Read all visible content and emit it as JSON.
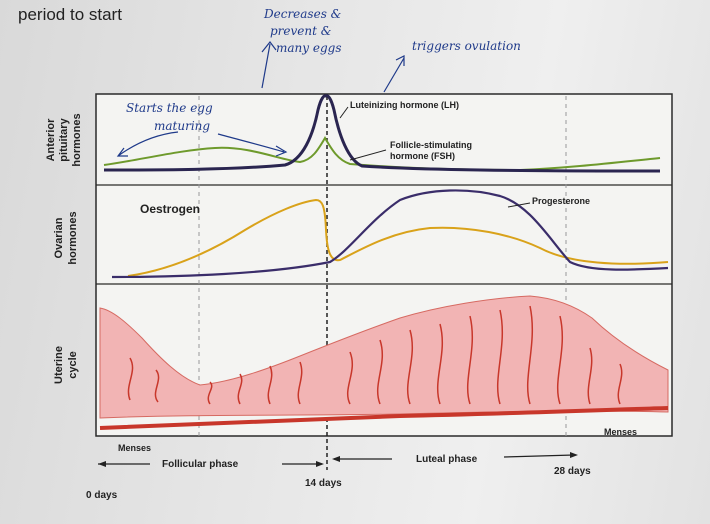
{
  "header": {
    "text": "period to start"
  },
  "panels": {
    "pituitary": [
      "Anterior",
      "pituitary",
      "hormones"
    ],
    "ovarian": [
      "Ovarian",
      "hormones"
    ],
    "uterine": [
      "Uterine",
      "cycle"
    ]
  },
  "hormones": {
    "lh": "Luteinizing hormone (LH)",
    "fsh_line1": "Follicle-stimulating",
    "fsh_line2": "hormone (FSH)",
    "oestrogen": "Oestrogen",
    "progesterone": "Progesterone"
  },
  "phases": {
    "menses_left": "Menses",
    "menses_right": "Menses",
    "follicular": "Follicular phase",
    "luteal": "Luteal phase"
  },
  "days": {
    "start": "0 days",
    "ovulation": "14 days",
    "end": "28 days"
  },
  "annotations": {
    "decreases_line1": "Decreases &",
    "decreases_line2": "prevent &",
    "decreases_line3": "many eggs",
    "ovulation": "triggers ovulation",
    "egg_line1": "Starts the egg",
    "egg_line2": "maturing"
  },
  "colors": {
    "lh": "#2a2550",
    "fsh": "#6e9a2c",
    "oestrogen": "#d9a21a",
    "progesterone": "#3a2d6a",
    "uterine_fill": "#f2b4b4",
    "uterine_line": "#c8372b",
    "ink": "#1f3a8a"
  }
}
